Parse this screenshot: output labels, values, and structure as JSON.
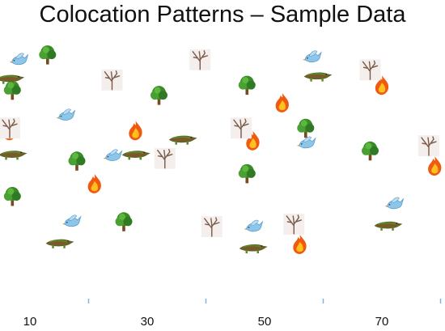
{
  "chart_data": {
    "type": "scatter",
    "title": "Colocation Patterns – Sample Data",
    "xlabel": "",
    "ylabel": "",
    "xlim": [
      4,
      80
    ],
    "ylim": [
      0,
      100
    ],
    "x_tick_labels": [
      "10",
      "30",
      "50",
      "70"
    ],
    "x_tick_values": [
      10,
      30,
      50,
      70
    ],
    "minor_tick_values": [
      20,
      40,
      60,
      80
    ],
    "grid": false,
    "legend": "none",
    "colors": {
      "bird": "#8ec6ea",
      "tree": "#3a8a2a",
      "fire": "#f05a10",
      "croc": "#7a5a2a",
      "dead_tree": "#7a5a48",
      "axis_tick": "#8ab0d8"
    },
    "series": [
      {
        "icon": "bird-icon",
        "points": [
          [
            8,
            90
          ],
          [
            16,
            68
          ],
          [
            24,
            52
          ],
          [
            17,
            26
          ],
          [
            58,
            91
          ],
          [
            57,
            57
          ],
          [
            72,
            33
          ],
          [
            48,
            24
          ]
        ]
      },
      {
        "icon": "tree-icon",
        "points": [
          [
            13,
            92
          ],
          [
            7,
            78
          ],
          [
            32,
            76
          ],
          [
            47,
            80
          ],
          [
            57,
            63
          ],
          [
            18,
            50
          ],
          [
            7,
            36
          ],
          [
            26,
            26
          ],
          [
            47,
            45
          ],
          [
            68,
            54
          ]
        ]
      },
      {
        "icon": "fire-icon",
        "points": [
          [
            53,
            73
          ],
          [
            70,
            80
          ],
          [
            6,
            62
          ],
          [
            28,
            62
          ],
          [
            48,
            58
          ],
          [
            79,
            48
          ],
          [
            21,
            41
          ],
          [
            56,
            17
          ]
        ]
      },
      {
        "icon": "croc-icon",
        "points": [
          [
            6,
            83
          ],
          [
            59,
            84
          ],
          [
            36,
            59
          ],
          [
            7,
            53
          ],
          [
            28,
            53
          ],
          [
            15,
            18
          ],
          [
            48,
            16
          ],
          [
            71,
            25
          ]
        ]
      },
      {
        "icon": "dead-tree-icon",
        "points": [
          [
            24,
            82
          ],
          [
            39,
            90
          ],
          [
            68,
            86
          ],
          [
            4,
            63
          ],
          [
            46,
            63
          ],
          [
            78,
            56
          ],
          [
            33,
            51
          ],
          [
            41,
            24
          ],
          [
            55,
            25
          ]
        ]
      }
    ]
  }
}
